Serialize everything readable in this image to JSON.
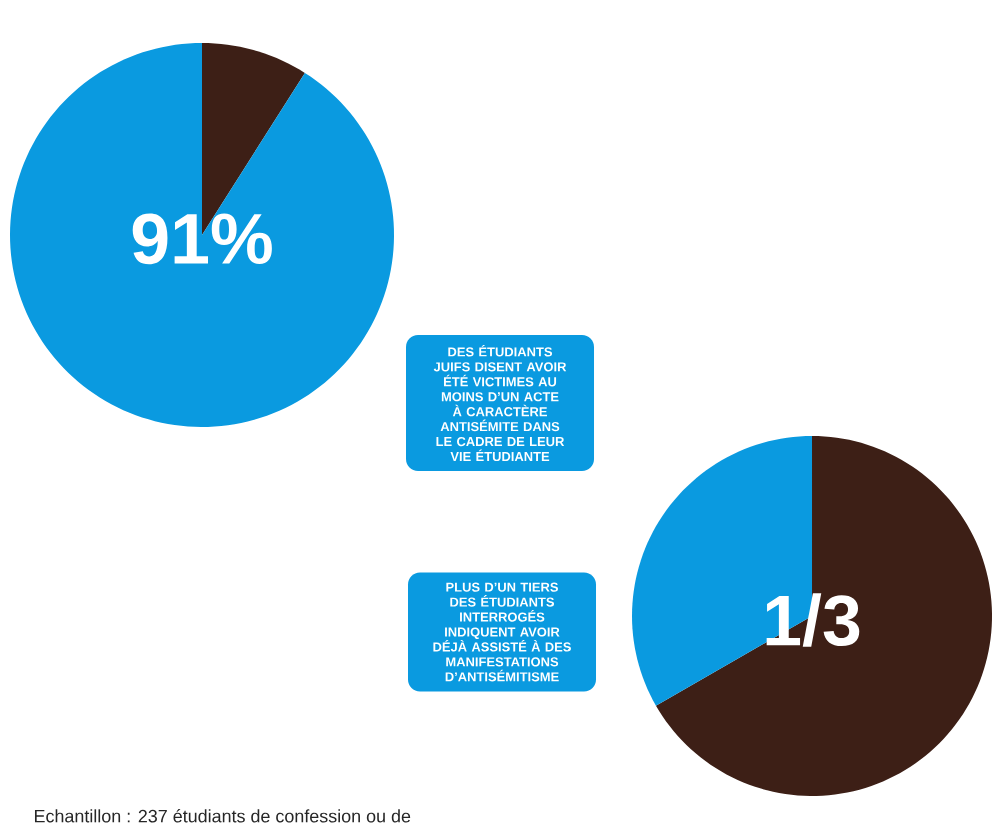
{
  "chart_data": [
    {
      "type": "pie",
      "categories": [
        null,
        null
      ],
      "values": [
        9,
        91
      ],
      "colors": [
        "#3d1f16",
        "#0a9ae0"
      ],
      "value_labels": [
        null,
        "91%"
      ],
      "annotations": [
        "DES ÉTUDIANTS JUIFS DISENT AVOIR ÉTÉ VICTIMES AU MOINS D’UN ACTE À CARACTÈRE ANTISÉMITE DANS LE CADRE DE LEUR VIE ÉTUDIANTE"
      ]
    },
    {
      "type": "pie",
      "categories": [
        null,
        null
      ],
      "values": [
        66.7,
        33.3
      ],
      "colors": [
        "#3d1f16",
        "#0a9ae0"
      ],
      "annotations": [
        "PLUS D’UN TIERS DES ÉTUDIANTS INTERROGÉS INDIQUENT AVOIR DÉJÀ ASSISTÉ À DES MANIFESTATIONS D’ANTISÉMITISME",
        "Echantillon : 237 étudiants de confession ou de",
        "1/3"
      ]
    }
  ]
}
